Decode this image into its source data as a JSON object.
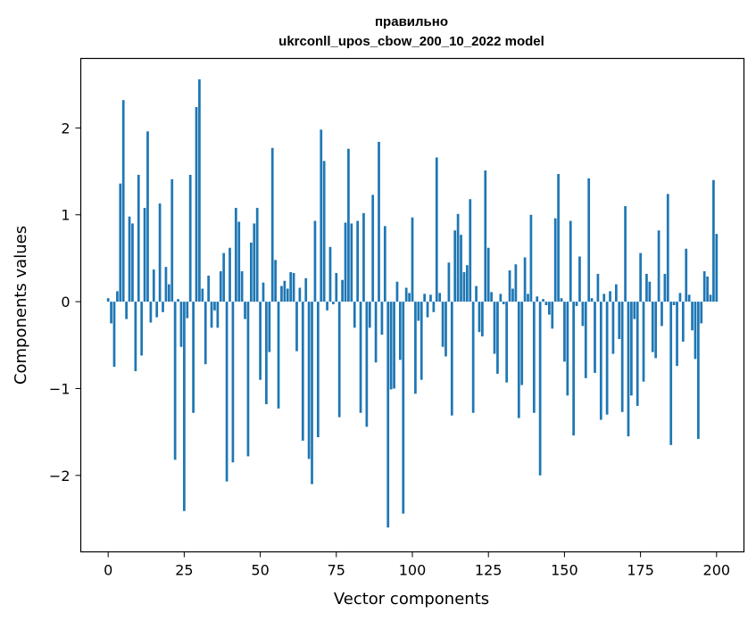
{
  "chart_data": {
    "type": "bar",
    "title_line1": "правильно",
    "title_line2": "ukrconll_upos_cbow_200_10_2022 model",
    "xlabel": "Vector components",
    "ylabel": "Components values",
    "xlim": [
      -9,
      209
    ],
    "ylim": [
      -2.88,
      2.8
    ],
    "xticks": [
      0,
      25,
      50,
      75,
      100,
      125,
      150,
      175,
      200
    ],
    "yticks": [
      -2,
      -1,
      0,
      1,
      2
    ],
    "ytick_labels": [
      "−2",
      "−1",
      "0",
      "1",
      "2"
    ],
    "bar_color": "#1f77b4",
    "values": [
      0.04,
      -0.25,
      -0.75,
      0.12,
      1.36,
      2.32,
      -0.2,
      0.98,
      0.9,
      -0.8,
      1.46,
      -0.62,
      1.08,
      1.96,
      -0.24,
      0.37,
      -0.18,
      1.13,
      -0.12,
      0.4,
      0.2,
      1.41,
      -1.82,
      0.03,
      -0.52,
      -2.41,
      -0.19,
      1.46,
      -1.28,
      2.24,
      2.56,
      0.15,
      -0.72,
      0.3,
      -0.3,
      -0.1,
      -0.3,
      0.35,
      0.56,
      -2.07,
      0.62,
      -1.85,
      1.08,
      0.92,
      0.35,
      -0.2,
      -1.78,
      0.68,
      0.9,
      1.08,
      -0.9,
      0.22,
      -1.18,
      -0.58,
      1.77,
      0.48,
      -1.23,
      0.18,
      0.24,
      0.15,
      0.34,
      0.33,
      -0.57,
      0.16,
      -1.6,
      0.27,
      -1.81,
      -2.1,
      0.93,
      -1.56,
      1.98,
      1.62,
      -0.1,
      0.63,
      -0.03,
      0.33,
      -1.33,
      0.25,
      0.91,
      1.76,
      0.9,
      -0.3,
      0.93,
      -1.28,
      1.02,
      -1.44,
      -0.3,
      1.23,
      -0.7,
      1.84,
      -0.38,
      0.87,
      -2.6,
      -1.01,
      -1.0,
      0.23,
      -0.67,
      -2.44,
      0.16,
      0.1,
      0.97,
      -1.06,
      -0.22,
      -0.9,
      0.09,
      -0.18,
      0.08,
      -0.12,
      1.66,
      0.1,
      -0.52,
      -0.63,
      0.45,
      -1.31,
      0.82,
      1.01,
      0.77,
      0.34,
      0.42,
      1.18,
      -1.28,
      0.18,
      -0.35,
      -0.4,
      1.51,
      0.62,
      0.11,
      -0.6,
      -0.83,
      0.09,
      -0.03,
      -0.93,
      0.36,
      0.15,
      0.43,
      -1.34,
      -0.96,
      0.51,
      0.09,
      1.0,
      -1.28,
      0.06,
      -2.0,
      0.03,
      -0.04,
      -0.15,
      -0.31,
      0.96,
      1.47,
      0.04,
      -0.69,
      -1.08,
      0.93,
      -1.54,
      -0.05,
      0.52,
      -0.28,
      -0.88,
      1.42,
      0.04,
      -0.82,
      0.32,
      -1.36,
      0.09,
      -1.3,
      0.12,
      -0.6,
      0.2,
      -0.43,
      -1.27,
      1.1,
      -1.55,
      -1.08,
      -0.2,
      -1.2,
      0.56,
      -0.92,
      0.32,
      0.23,
      -0.58,
      -0.65,
      0.82,
      -0.28,
      0.32,
      1.24,
      -1.65,
      -0.04,
      -0.74,
      0.1,
      -0.46,
      0.61,
      0.08,
      -0.33,
      -0.66,
      -1.58,
      -0.25,
      0.35,
      0.29,
      0.08,
      1.4,
      0.78
    ]
  }
}
